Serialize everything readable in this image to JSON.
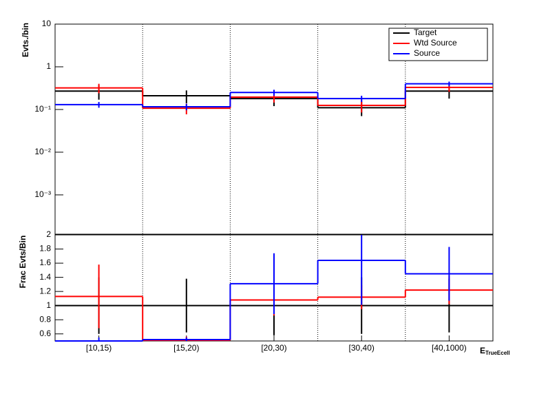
{
  "chart_data": [
    {
      "type": "step",
      "y_label": "Evts./bin",
      "log_y": true,
      "ylim": [
        0.00012,
        10
      ],
      "yticks": [
        {
          "value": 0.001,
          "label": "10⁻³"
        },
        {
          "value": 0.01,
          "label": "10⁻²"
        },
        {
          "value": 0.1,
          "label": "10⁻¹"
        },
        1,
        10
      ],
      "grid_x": true,
      "legend": "top-right",
      "series": [
        {
          "name": "Target",
          "color": "#000000",
          "values": [
            0.27,
            0.21,
            0.18,
            0.11,
            0.27
          ],
          "errors": [
            0.1,
            0.07,
            0.06,
            0.04,
            0.09
          ]
        },
        {
          "name": "Wtd Source",
          "color": "#ff0000",
          "values": [
            0.32,
            0.107,
            0.195,
            0.125,
            0.33
          ],
          "errors": [
            0.08,
            0.03,
            0.05,
            0.04,
            0.07
          ]
        },
        {
          "name": "Source",
          "color": "#0000ff",
          "values": [
            0.13,
            0.116,
            0.25,
            0.18,
            0.4
          ],
          "errors": [
            0.02,
            0.02,
            0.04,
            0.03,
            0.05
          ]
        }
      ]
    },
    {
      "type": "step",
      "y_label": "Frac Evts/Bin",
      "x_label": "E",
      "x_label_sub": "TrueEcell",
      "log_y": false,
      "ylim": [
        0.5,
        2
      ],
      "yticks": [
        0.6,
        0.8,
        1,
        1.2,
        1.4,
        1.6,
        1.8,
        2
      ],
      "grid_x": true,
      "categories": [
        "[10,15)",
        "[15,20)",
        "[20,30)",
        "[30,40)",
        "[40,1000)"
      ],
      "series": [
        {
          "name": "Target",
          "color": "#000000",
          "values": [
            1,
            1,
            1,
            1,
            1
          ],
          "errors": [
            0.4,
            0.38,
            0.42,
            0.4,
            0.38
          ]
        },
        {
          "name": "Wtd Source",
          "color": "#ff0000",
          "values": [
            1.13,
            0.51,
            1.08,
            1.12,
            1.22
          ],
          "errors": [
            0.45,
            0.05,
            0.22,
            0.17,
            0.2
          ]
        },
        {
          "name": "Source",
          "color": "#0000ff",
          "values": [
            0.5,
            0.52,
            1.31,
            1.64,
            1.45
          ],
          "errors": [
            0.05,
            0.03,
            0.43,
            0.63,
            0.38
          ]
        }
      ]
    }
  ]
}
